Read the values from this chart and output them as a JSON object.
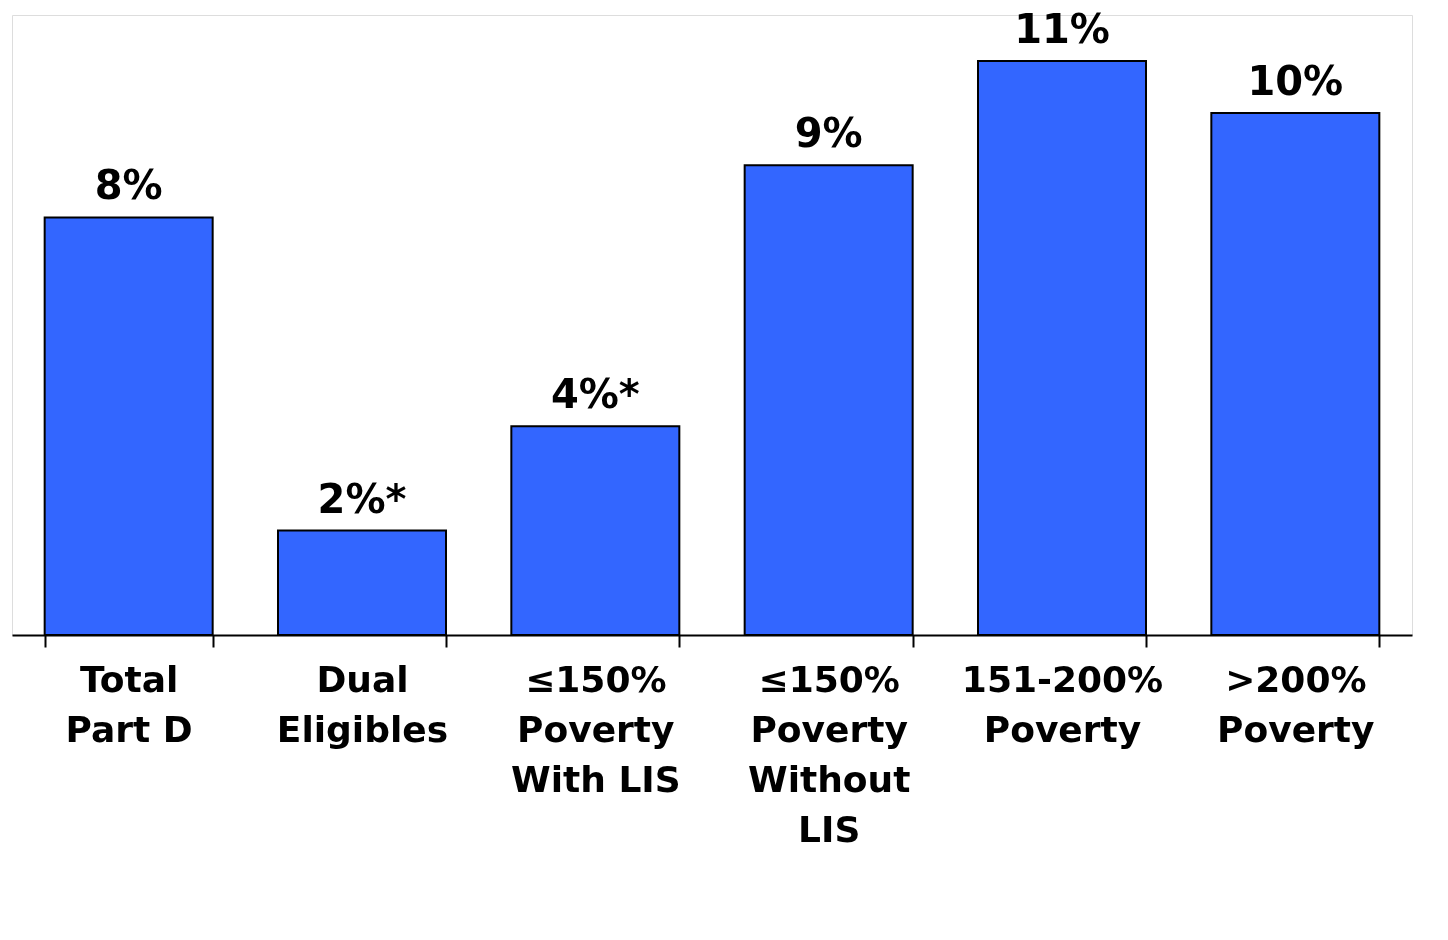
{
  "chart_data": {
    "type": "bar",
    "categories": [
      "Total Part D",
      "Dual Eligibles",
      "≤150% Poverty With LIS",
      "≤150% Poverty Without LIS",
      "151-200% Poverty",
      ">200% Poverty"
    ],
    "values": [
      8,
      2,
      4,
      9,
      11,
      10
    ],
    "value_labels": [
      "8%",
      "2%*",
      "4%*",
      "9%",
      "11%",
      "10%"
    ],
    "color": "#3366ff"
  }
}
